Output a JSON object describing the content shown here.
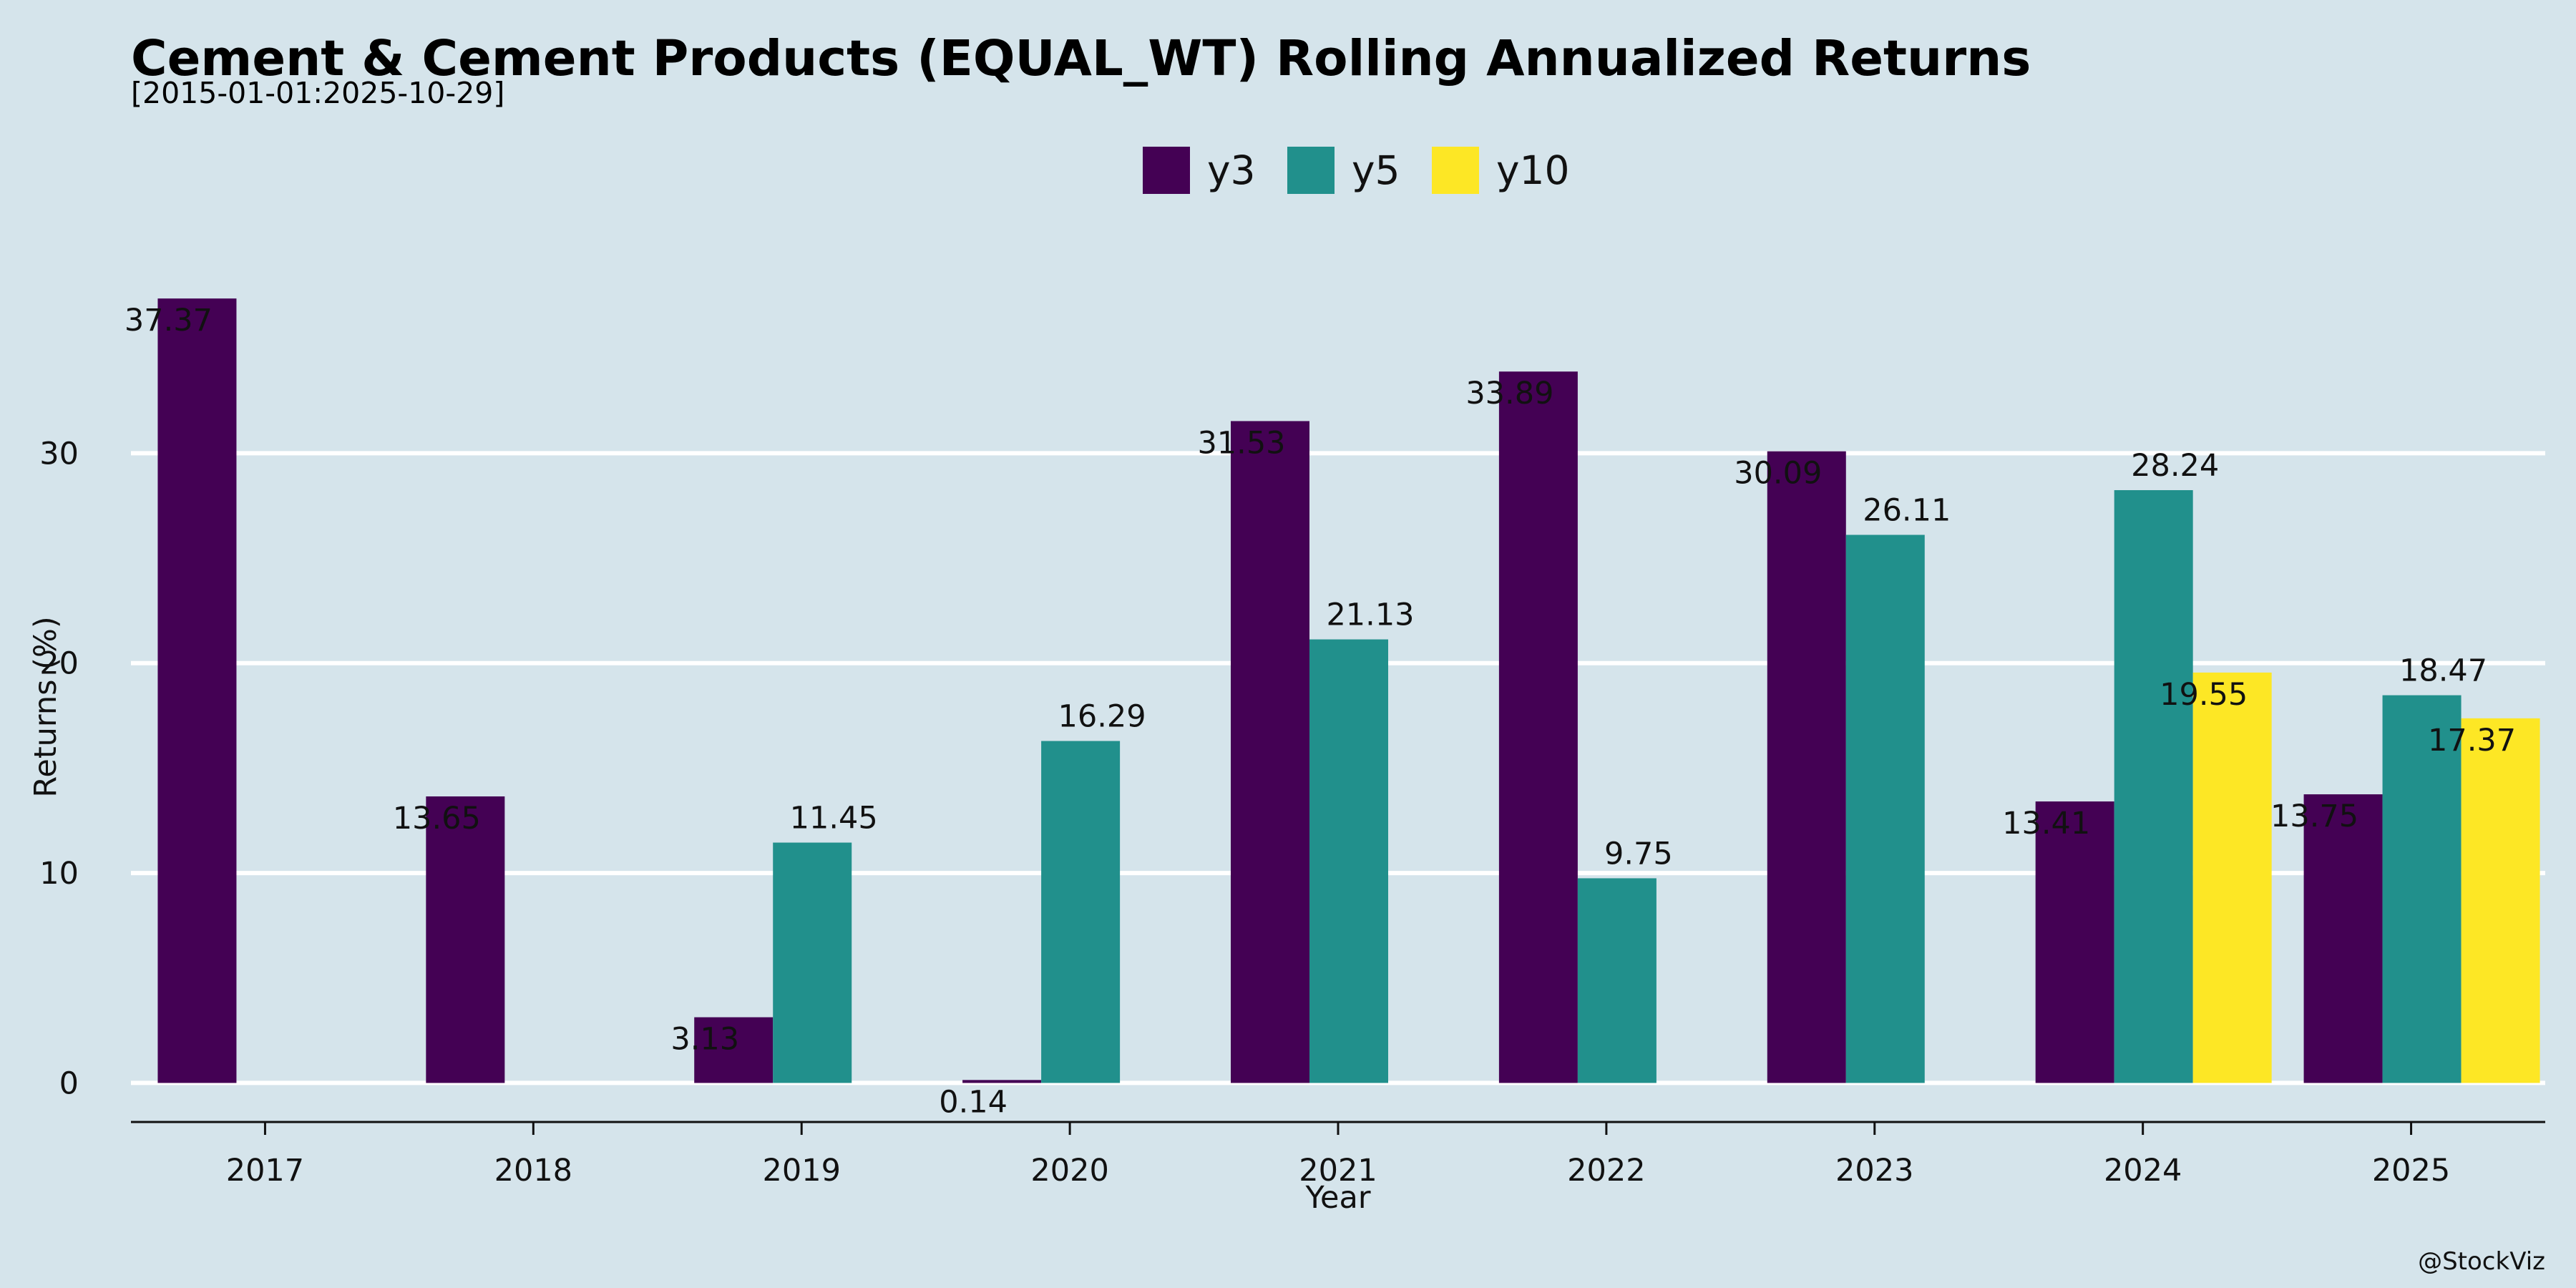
{
  "chart_data": {
    "type": "bar",
    "title": "Cement & Cement Products (EQUAL_WT) Rolling Annualized Returns",
    "subtitle": "[2015-01-01:2025-10-29]",
    "xlabel": "Year",
    "ylabel": "Returns (%)",
    "categories": [
      "2017",
      "2018",
      "2019",
      "2020",
      "2021",
      "2022",
      "2023",
      "2024",
      "2025"
    ],
    "series": [
      {
        "name": "y3",
        "color": "#440154",
        "values": [
          37.37,
          13.65,
          3.13,
          0.14,
          31.53,
          33.89,
          30.09,
          13.41,
          13.75
        ]
      },
      {
        "name": "y5",
        "color": "#21908c",
        "values": [
          null,
          null,
          11.45,
          16.29,
          21.13,
          9.75,
          26.11,
          28.24,
          18.47
        ]
      },
      {
        "name": "y10",
        "color": "#fde725",
        "values": [
          null,
          null,
          null,
          null,
          null,
          null,
          null,
          19.55,
          17.37
        ]
      }
    ],
    "yticks": [
      0,
      10,
      20,
      30
    ],
    "ylim": [
      -1.86,
      40
    ],
    "grid": "horizontal",
    "legend": "top-center",
    "credit": "@StockViz"
  }
}
